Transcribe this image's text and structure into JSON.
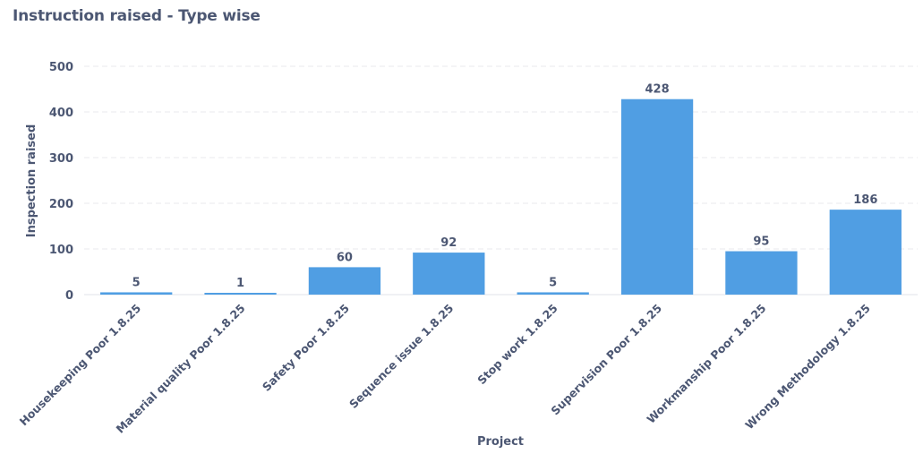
{
  "chart_data": {
    "type": "bar",
    "title": "Instruction raised - Type wise",
    "xlabel": "Project",
    "ylabel": "Inspection raised",
    "categories": [
      "Housekeeping Poor 1.8.25",
      "Material quality Poor 1.8.25",
      "Safety Poor 1.8.25",
      "Sequence issue 1.8.25",
      "Stop work 1.8.25",
      "Supervision Poor 1.8.25",
      "Workmanship Poor 1.8.25",
      "Wrong Methodology 1.8.25"
    ],
    "values": [
      5,
      1,
      60,
      92,
      5,
      428,
      95,
      186
    ],
    "ylim": [
      0,
      500
    ],
    "yticks": [
      0,
      100,
      200,
      300,
      400,
      500
    ],
    "grid": true,
    "bar_color": "#509ee3"
  }
}
